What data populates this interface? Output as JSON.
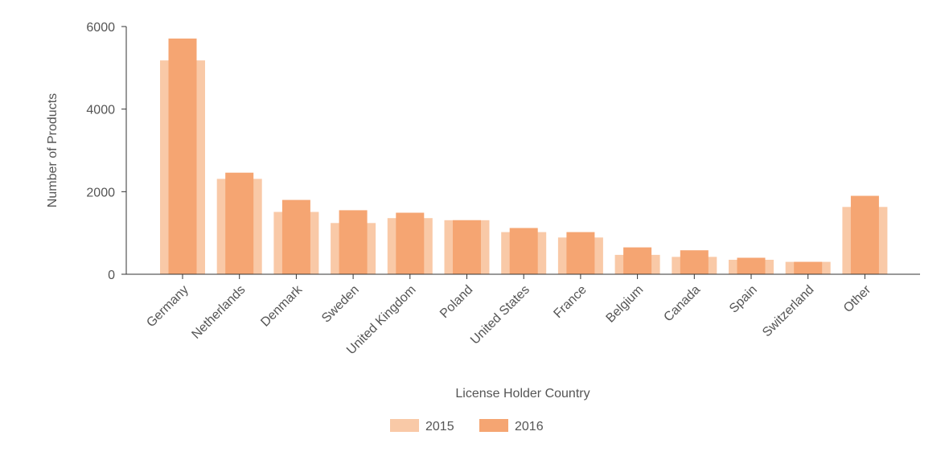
{
  "chart_data": {
    "type": "bar",
    "title": "",
    "xlabel": "License Holder Country",
    "ylabel": "Number of Products",
    "ylim": [
      0,
      6000
    ],
    "yticks": [
      0,
      2000,
      4000,
      6000
    ],
    "categories": [
      "Germany",
      "Netherlands",
      "Denmark",
      "Sweden",
      "United Kingdom",
      "Poland",
      "United States",
      "France",
      "Belgium",
      "Canada",
      "Spain",
      "Switzerland",
      "Other"
    ],
    "series": [
      {
        "name": "2015",
        "color": "#f9c9a7",
        "values": [
          5180,
          2310,
          1510,
          1240,
          1360,
          1310,
          1020,
          890,
          470,
          420,
          350,
          300,
          1630
        ]
      },
      {
        "name": "2016",
        "color": "#f5a572",
        "values": [
          5710,
          2460,
          1800,
          1550,
          1490,
          1310,
          1120,
          1020,
          650,
          580,
          400,
          300,
          1900
        ]
      }
    ],
    "legend_position": "bottom-center",
    "grid": false
  }
}
